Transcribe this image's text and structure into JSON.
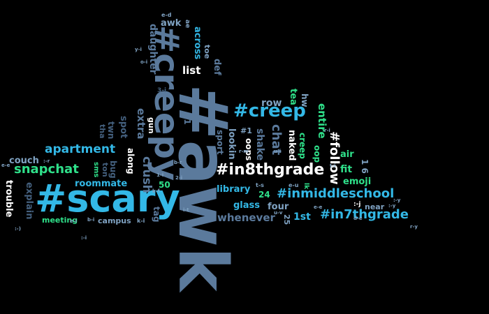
{
  "words": {
    "awk_hash": "#awk",
    "scary_hash": "#scary",
    "creepy_hash": "#creepy",
    "creep_hash": "#creep",
    "in8thgrade_hash": "#in8thgrade",
    "inmiddleschool_hash": "#inmiddleschool",
    "in7thgrade_hash": "#in7thgrade",
    "follow_hash": "#follow",
    "snapchat": "snapchat",
    "apartment": "apartment",
    "roommate": "roommate",
    "crush": "crush",
    "extra": "extra",
    "daughter": "daughter",
    "across": "across",
    "awk": "awk",
    "list": "list",
    "def": "def",
    "toe": "toe",
    "hw": "hw",
    "tea": "tea",
    "row": "row",
    "chat": "chat",
    "shake": "shake",
    "naked": "naked",
    "entire": "entire",
    "creep": "creep",
    "oop": "oop",
    "lookin": "lookin",
    "sport": "sport",
    "oops": "oops",
    "library": "library",
    "glass": "glass",
    "four": "four",
    "whenever": "whenever",
    "first": "1st",
    "twentyfive": "25",
    "twentyfour": "24",
    "air": "air",
    "fit": "fit",
    "emoji": "emoji",
    "near": "near",
    "couch": "couch",
    "trouble": "trouble",
    "explain": "explain",
    "meeting": "meeting",
    "campus": "campus",
    "tag": "tag",
    "fifty": "50",
    "gun": "gun",
    "spot": "spot",
    "twn": "twn",
    "tha": "tha",
    "along": "along",
    "bug": "bug",
    "ton": "ton",
    "sms": "sms",
    "twentyone": "21",
    "one_six": "1 6",
    "hash_one": "#1",
    "lk": "lk",
    "ae": "ae",
    "e_d": "e-d",
    "three_i": "3-i",
    "k_i": "k-i",
    "t_s": "t-s",
    "e_u": "e-u",
    "emoticons": [
      ":-)",
      ":-r",
      ":-y",
      "e-i",
      "r-i",
      "b-i",
      "k-f",
      "2-i",
      "1-i",
      "r-m",
      "u-i",
      "r-y",
      "o-i",
      "t-i",
      "e-e",
      "b-r",
      "y-i",
      "i-t",
      ":-y",
      ":-i",
      "d-e",
      "u-v",
      "e-e",
      ":-j"
    ]
  }
}
